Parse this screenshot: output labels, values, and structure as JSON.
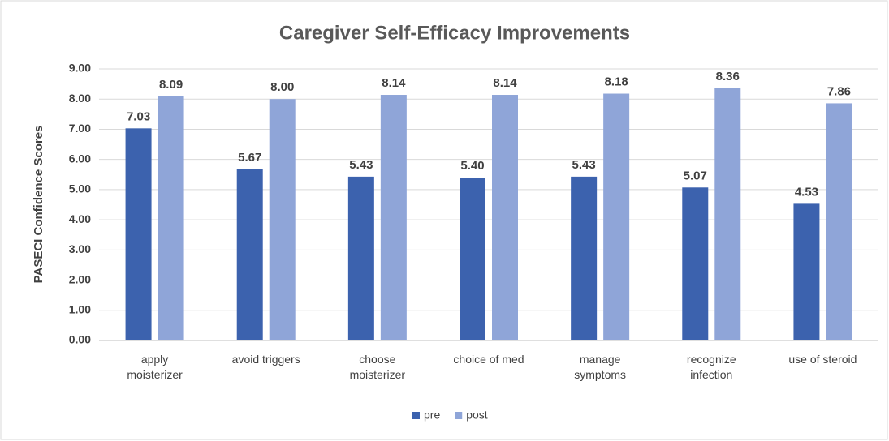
{
  "chart_data": {
    "type": "bar",
    "title": "Caregiver Self-Efficacy Improvements",
    "y_label": "PASECI Confidence Scores",
    "categories": [
      "apply\nmoisterizer",
      "avoid triggers",
      "choose\nmoisterizer",
      "choice of med",
      "manage\nsymptoms",
      "recognize\ninfection",
      "use of steroid"
    ],
    "series": [
      {
        "name": "pre",
        "color": "#3c62ae",
        "values": [
          7.03,
          5.67,
          5.43,
          5.4,
          5.43,
          5.07,
          4.53
        ],
        "value_labels": [
          "7.03",
          "5.67",
          "5.43",
          "5.40",
          "5.43",
          "5.07",
          "4.53"
        ]
      },
      {
        "name": "post",
        "color": "#8fa5d8",
        "values": [
          8.09,
          8.0,
          8.14,
          8.14,
          8.18,
          8.36,
          7.86
        ],
        "value_labels": [
          "8.09",
          "8.00",
          "8.14",
          "8.14",
          "8.18",
          "8.36",
          "7.86"
        ]
      }
    ],
    "ylim": [
      0,
      9
    ],
    "yticks": [
      {
        "value": 0,
        "label": "0.00"
      },
      {
        "value": 1,
        "label": "1.00"
      },
      {
        "value": 2,
        "label": "2.00"
      },
      {
        "value": 3,
        "label": "3.00"
      },
      {
        "value": 4,
        "label": "4.00"
      },
      {
        "value": 5,
        "label": "5.00"
      },
      {
        "value": 6,
        "label": "6.00"
      },
      {
        "value": 7,
        "label": "7.00"
      },
      {
        "value": 8,
        "label": "8.00"
      },
      {
        "value": 9,
        "label": "9.00"
      }
    ],
    "grid": true,
    "legend": "bottom"
  }
}
